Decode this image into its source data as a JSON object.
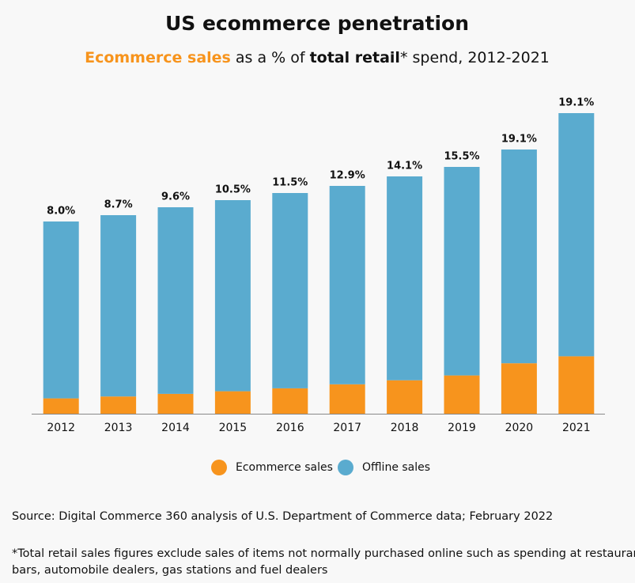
{
  "chart_data": {
    "type": "stacked_bar",
    "title": "US ecommerce penetration",
    "subtitle": {
      "part1": "Ecommerce sales",
      "part2": " as a % of ",
      "part3": "total retail",
      "part4": "* spend, 2012-2021"
    },
    "categories": [
      "2012",
      "2013",
      "2014",
      "2015",
      "2016",
      "2017",
      "2018",
      "2019",
      "2020",
      "2021"
    ],
    "series": [
      {
        "name": "Ecommerce sales",
        "color": "#f7941d",
        "values": [
          19.4,
          21.8,
          25.1,
          28.4,
          32.1,
          37.2,
          42.3,
          48.4,
          63.8,
          72.6
        ]
      },
      {
        "name": "Offline sales",
        "color": "#5aabcf",
        "values": [
          223.6,
          229.2,
          235.9,
          241.6,
          246.9,
          250.8,
          257.7,
          263.6,
          270.2,
          307.4
        ]
      }
    ],
    "shares": {
      "values": [
        8.0,
        8.7,
        9.6,
        10.5,
        11.5,
        12.9,
        14.1,
        15.5,
        19.1,
        19.1
      ],
      "value_labels": [
        "8.0%",
        "8.7%",
        "9.6%",
        "10.5%",
        "11.5%",
        "12.9%",
        "14.1%",
        "15.5%",
        "19.1%",
        "19.1%"
      ]
    },
    "ylim": [
      0,
      400
    ],
    "source": "Source: Digital Commerce 360 analysis of U.S. Department of Commerce data; February 2022",
    "footnote": [
      "*Total retail sales figures exclude sales of items not normally purchased online such as spending at restaurants,",
      "bars, automobile dealers, gas stations and fuel dealers"
    ]
  }
}
